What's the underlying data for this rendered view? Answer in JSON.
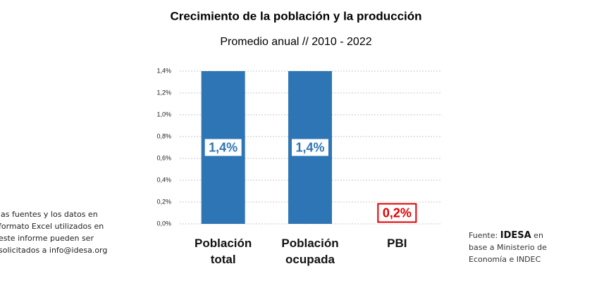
{
  "chart_data": {
    "type": "bar",
    "title": "Crecimiento de la población y la producción",
    "subtitle": "Promedio anual // 2010 - 2022",
    "categories": [
      "Población total",
      "Población ocupada",
      "PBI"
    ],
    "values": [
      1.4,
      1.4,
      0.2
    ],
    "value_labels": [
      "1,4%",
      "1,4%",
      "0,2%"
    ],
    "colors": [
      "#2e75b6",
      "#2e75b6",
      "#ffffff"
    ],
    "value_label_colors": [
      "#2e75b6",
      "#2e75b6",
      "#e00000"
    ],
    "ylim": [
      0,
      1.4
    ],
    "yticks": [
      {
        "value": 0,
        "label": "0,0%"
      },
      {
        "value": 0.2,
        "label": "0,2%"
      },
      {
        "value": 0.4,
        "label": "0,4%"
      },
      {
        "value": 0.6,
        "label": "0,6%"
      },
      {
        "value": 0.8,
        "label": "0,8%"
      },
      {
        "value": 1.0,
        "label": "1,0%"
      },
      {
        "value": 1.2,
        "label": "1,2%"
      },
      {
        "value": 1.4,
        "label": "1,4%"
      }
    ],
    "grid": true,
    "note": [
      "las fuentes y los datos en",
      "formato Excel utilizados en",
      "este informe pueden ser",
      "solicitados a info@idesa.org"
    ],
    "source": {
      "prefix": "Fuente:",
      "brand": "IDESA",
      "line1_rest": "en",
      "line2": "base a Ministerio de",
      "line3": "Economía e INDEC"
    }
  }
}
